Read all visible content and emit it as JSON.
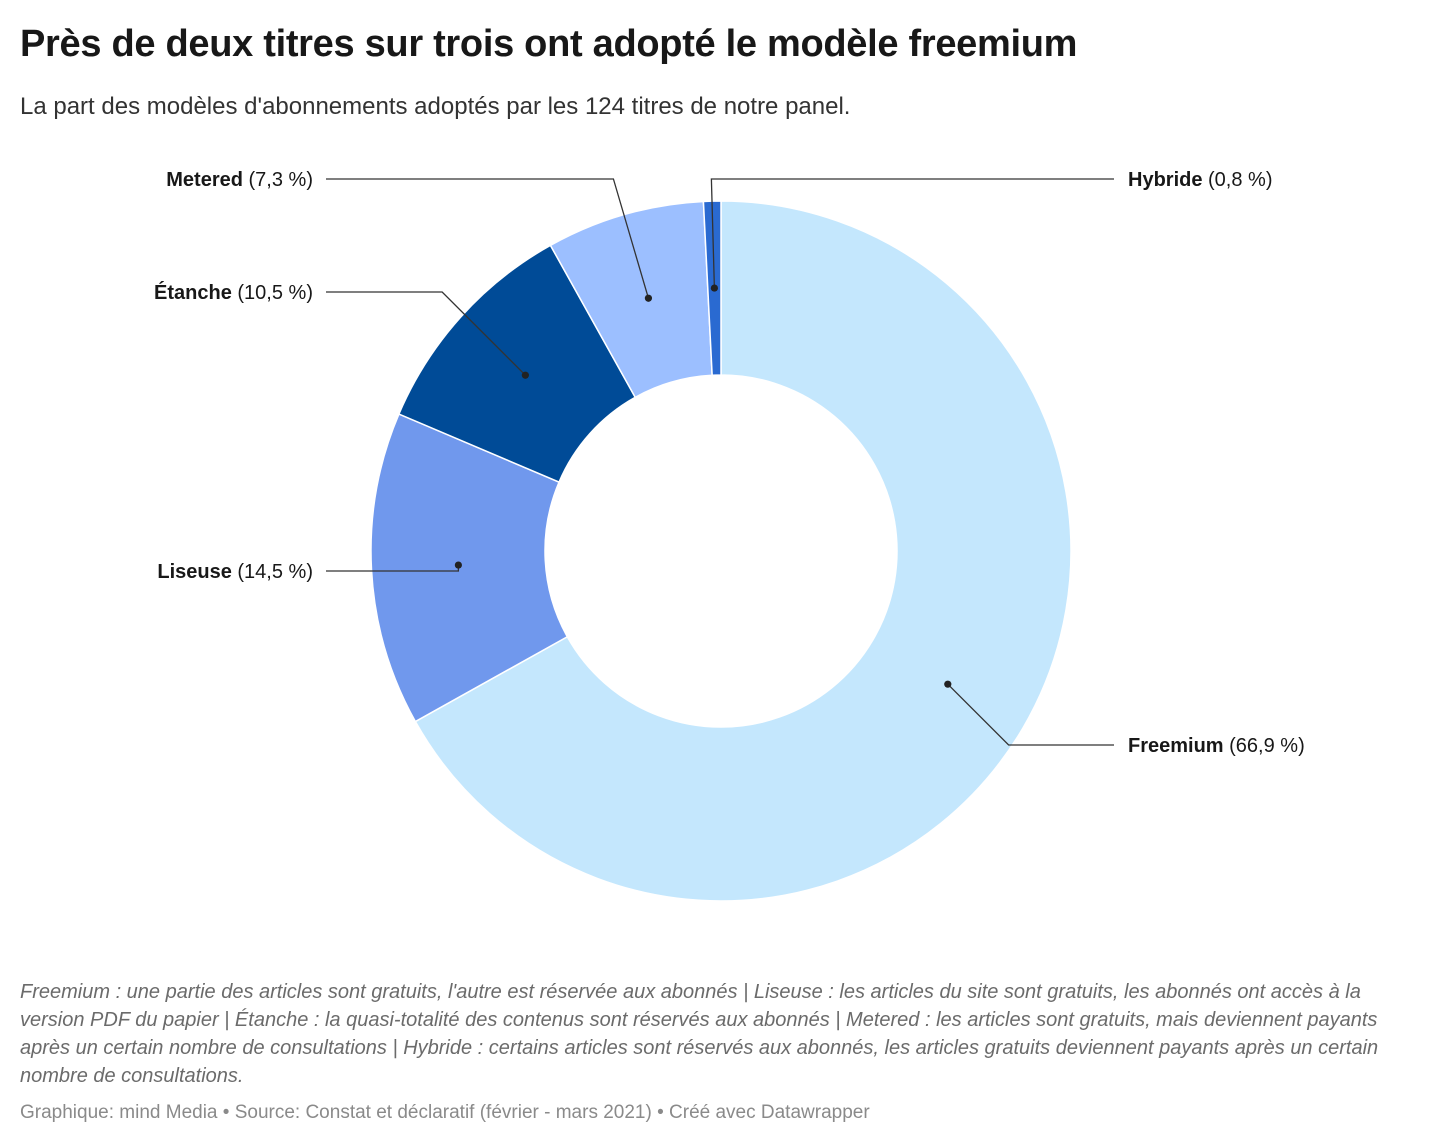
{
  "title": "Près de deux titres sur trois ont adopté le modèle freemium",
  "subtitle": "La part des modèles d'abonnements adoptés par les 124 titres de notre panel.",
  "chart_data": {
    "type": "pie",
    "variant": "donut",
    "categories": [
      "Freemium",
      "Liseuse",
      "Étanche",
      "Metered",
      "Hybride"
    ],
    "values": [
      66.9,
      14.5,
      10.5,
      7.3,
      0.8
    ],
    "value_labels": [
      "(66,9 %)",
      "(14,5 %)",
      "(10,5 %)",
      "(7,3 %)",
      "(0,8 %)"
    ],
    "colors": [
      "#c4e7fd",
      "#7098ed",
      "#004b97",
      "#9cbfff",
      "#2a6ad1"
    ],
    "label_placement": [
      "right",
      "left",
      "left",
      "left",
      "right"
    ],
    "unit": "%"
  },
  "notes": "Freemium : une partie des articles sont gratuits, l'autre est réservée aux abonnés | Liseuse : les articles du site sont gratuits, les abonnés ont accès à la version PDF du papier | Étanche : la quasi-totalité des contenus sont réservés aux abonnés | Metered : les articles sont gratuits, mais deviennent payants après un certain nombre de consultations | Hybride : certains articles sont réservés aux abonnés, les articles gratuits deviennent payants après un certain nombre de consultations.",
  "byline": "Graphique: mind Media • Source: Constat et déclaratif (février - mars 2021) • Créé avec Datawrapper"
}
